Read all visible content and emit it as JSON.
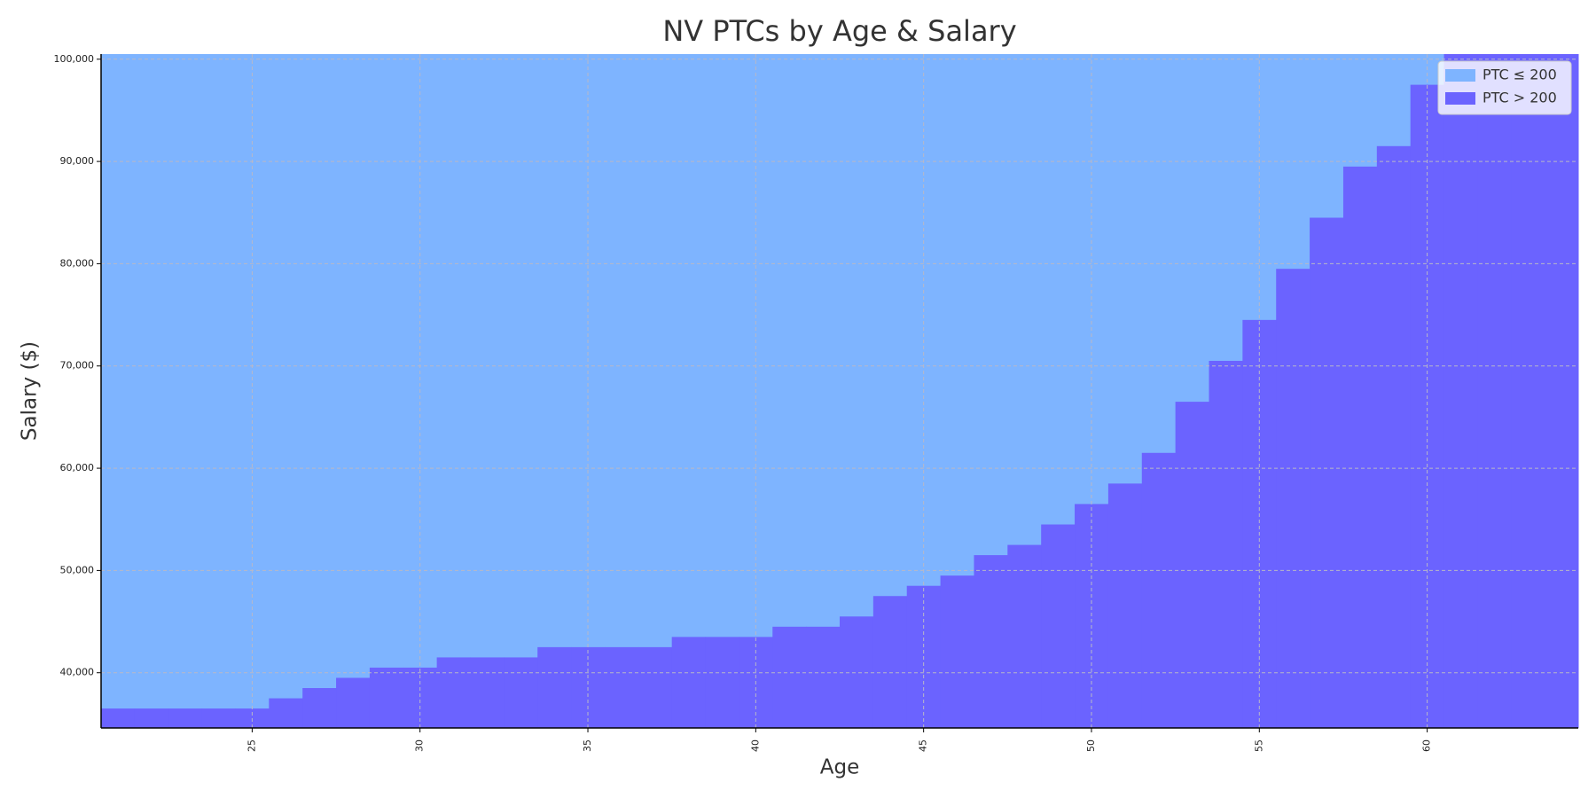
{
  "chart_data": {
    "type": "step_area",
    "title": "NV PTCs by Age & Salary",
    "x_label": "Age",
    "y_label": "Salary ($)",
    "x": [
      21,
      22,
      23,
      24,
      25,
      26,
      27,
      28,
      29,
      30,
      31,
      32,
      33,
      34,
      35,
      36,
      37,
      38,
      39,
      40,
      41,
      42,
      43,
      44,
      45,
      46,
      47,
      48,
      49,
      50,
      51,
      52,
      53,
      54,
      55,
      56,
      57,
      58,
      59,
      60,
      61,
      62,
      63,
      64
    ],
    "series": [
      {
        "name": "PTC ≤ 200",
        "color": "#7eb4ff",
        "fill": "above"
      },
      {
        "name": "PTC > 200",
        "color": "#6b63ff",
        "fill": "below",
        "values": [
          36500,
          36500,
          36500,
          36500,
          36500,
          37500,
          38500,
          39500,
          40500,
          40500,
          41500,
          41500,
          41500,
          42500,
          42500,
          42500,
          42500,
          43500,
          43500,
          43500,
          44500,
          44500,
          45500,
          47500,
          48500,
          49500,
          51500,
          52500,
          54500,
          56500,
          58500,
          61500,
          66500,
          70500,
          74500,
          79500,
          84500,
          89500,
          91500,
          97500,
          100500,
          100500,
          100500,
          100500
        ]
      }
    ],
    "xlim": [
      20.5,
      64.5
    ],
    "ylim": [
      34600,
      100500
    ],
    "xticks": [
      25,
      30,
      35,
      40,
      45,
      50,
      55,
      60
    ],
    "yticks": [
      {
        "value": 40000,
        "label": "40,000"
      },
      {
        "value": 50000,
        "label": "50,000"
      },
      {
        "value": 60000,
        "label": "60,000"
      },
      {
        "value": 70000,
        "label": "70,000"
      },
      {
        "value": 80000,
        "label": "80,000"
      },
      {
        "value": 90000,
        "label": "90,000"
      },
      {
        "value": 100000,
        "label": "100,000"
      }
    ],
    "grid": true,
    "legend": "upper right"
  }
}
